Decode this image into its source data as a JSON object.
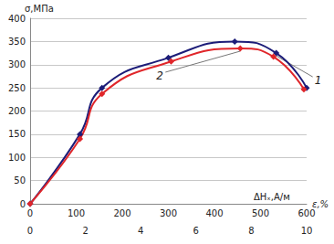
{
  "chart_data": {
    "type": "line",
    "y_label": "σ,МПа",
    "x_label": "ε,%",
    "x2_label": "ΔHₓ,A/м",
    "xlim": [
      0,
      10
    ],
    "xticks": [
      0,
      2,
      4,
      6,
      8,
      10
    ],
    "x2lim": [
      0,
      600
    ],
    "x2ticks": [
      0,
      100,
      200,
      300,
      400,
      500,
      600
    ],
    "ylim": [
      0,
      400
    ],
    "yticks": [
      0,
      50,
      100,
      150,
      200,
      250,
      300,
      350,
      400
    ],
    "grid": true,
    "marker": "diamond",
    "series": [
      {
        "name": "1",
        "color": "#1c1c78",
        "x": [
          0,
          1.8,
          2.6,
          5.0,
          7.4,
          8.9,
          10.0
        ],
        "values": [
          0,
          150,
          250,
          315,
          350,
          325,
          250
        ]
      },
      {
        "name": "2",
        "color": "#e0262a",
        "x": [
          0,
          1.8,
          2.6,
          5.1,
          7.6,
          8.8,
          9.9
        ],
        "values": [
          0,
          140,
          237,
          307,
          335,
          317,
          247
        ]
      }
    ]
  }
}
